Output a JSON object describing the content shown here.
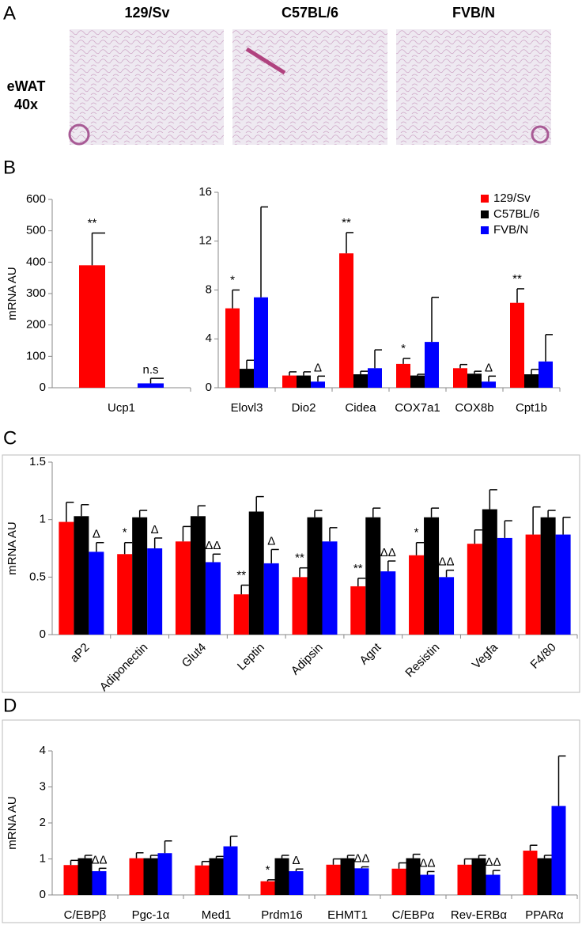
{
  "panel_labels": [
    "A",
    "B",
    "C",
    "D"
  ],
  "histology": {
    "columns": [
      "129/Sv",
      "C57BL/6",
      "FVB/N"
    ],
    "row_label": [
      "eWAT",
      "40x"
    ]
  },
  "chart_data": [
    {
      "type": "bar",
      "ylabel": "mRNA AU",
      "categories": [
        "Ucp1"
      ],
      "ylim": [
        0,
        600
      ],
      "yticks": [
        0,
        100,
        200,
        300,
        400,
        500,
        600
      ],
      "series": [
        {
          "color": "#ff0000",
          "values": [
            390
          ],
          "errors": [
            103
          ],
          "annotations": [
            "**"
          ]
        },
        {
          "color": "#000000",
          "values": [
            0
          ],
          "errors": [
            null
          ],
          "annotations": [
            null
          ]
        },
        {
          "color": "#0000ff",
          "values": [
            14
          ],
          "errors": [
            16
          ],
          "annotations": [
            "n.s"
          ]
        }
      ]
    },
    {
      "type": "bar",
      "categories": [
        "Elovl3",
        "Dio2",
        "Cidea",
        "COX7a1",
        "COX8b",
        "Cpt1b"
      ],
      "ylim": [
        0,
        16
      ],
      "yticks": [
        0,
        4,
        8,
        12,
        16
      ],
      "legend": "top-right",
      "series": [
        {
          "name": "129/Sv",
          "color": "#ff0000",
          "values": [
            6.5,
            1.0,
            11.0,
            1.95,
            1.6,
            6.95
          ],
          "errors": [
            1.5,
            0.3,
            1.7,
            0.45,
            0.3,
            1.15
          ],
          "annotations": [
            "*",
            null,
            "**",
            "*",
            null,
            "**"
          ]
        },
        {
          "name": "C57BL/6",
          "color": "#000000",
          "values": [
            1.55,
            1.0,
            1.1,
            1.0,
            1.15,
            1.1
          ],
          "errors": [
            0.7,
            0.3,
            0.25,
            0.1,
            0.2,
            0.4
          ],
          "annotations": [
            null,
            null,
            null,
            null,
            null,
            null
          ]
        },
        {
          "name": "FVB/N",
          "color": "#0000ff",
          "values": [
            7.4,
            0.5,
            1.6,
            3.75,
            0.5,
            2.15
          ],
          "errors": [
            7.4,
            0.45,
            1.5,
            3.65,
            0.45,
            2.2
          ],
          "annotations": [
            null,
            "Δ",
            null,
            null,
            "Δ",
            null
          ]
        }
      ]
    },
    {
      "type": "bar",
      "ylabel": "mRNA AU",
      "categories": [
        "aP2",
        "Adiponectin",
        "Glut4",
        "Leptin",
        "Adipsin",
        "Agnt",
        "Resistin",
        "Vegfa",
        "F4/80"
      ],
      "ylim": [
        0,
        1.5
      ],
      "yticks": [
        0,
        0.5,
        1,
        1.5
      ],
      "series": [
        {
          "color": "#ff0000",
          "values": [
            0.98,
            0.7,
            0.81,
            0.35,
            0.5,
            0.42,
            0.69,
            0.79,
            0.87
          ],
          "errors": [
            0.17,
            0.1,
            0.13,
            0.08,
            0.08,
            0.07,
            0.11,
            0.12,
            0.24
          ],
          "annotations": [
            null,
            "*",
            null,
            "**",
            "**",
            "**",
            "*",
            null,
            null
          ]
        },
        {
          "color": "#000000",
          "values": [
            1.03,
            1.02,
            1.03,
            1.07,
            1.02,
            1.02,
            1.02,
            1.09,
            1.02
          ],
          "errors": [
            0.1,
            0.06,
            0.09,
            0.13,
            0.06,
            0.08,
            0.08,
            0.17,
            0.06
          ],
          "annotations": [
            null,
            null,
            null,
            null,
            null,
            null,
            null,
            null,
            null
          ]
        },
        {
          "color": "#0000ff",
          "values": [
            0.72,
            0.75,
            0.63,
            0.62,
            0.81,
            0.55,
            0.5,
            0.84,
            0.87
          ],
          "errors": [
            0.08,
            0.09,
            0.07,
            0.12,
            0.12,
            0.09,
            0.06,
            0.15,
            0.15
          ],
          "annotations": [
            "Δ",
            "Δ",
            "ΔΔ",
            "Δ",
            null,
            "ΔΔ",
            "ΔΔ",
            null,
            null
          ]
        }
      ]
    },
    {
      "type": "bar",
      "ylabel": "mRNA AU",
      "categories": [
        "C/EBPβ",
        "Pgc-1α",
        "Med1",
        "Prdm16",
        "EHMT1",
        "C/EBPα",
        "Rev-ERBα",
        "PPARα"
      ],
      "ylim": [
        0,
        4
      ],
      "yticks": [
        0,
        1,
        2,
        3,
        4
      ],
      "series": [
        {
          "color": "#ff0000",
          "values": [
            0.83,
            1.02,
            0.82,
            0.38,
            0.84,
            0.73,
            0.84,
            1.23
          ],
          "errors": [
            0.13,
            0.15,
            0.11,
            0.04,
            0.16,
            0.16,
            0.16,
            0.15
          ],
          "annotations": [
            null,
            null,
            null,
            "*",
            null,
            null,
            null,
            null
          ]
        },
        {
          "color": "#000000",
          "values": [
            1.02,
            1.02,
            1.02,
            1.02,
            1.02,
            1.02,
            1.02,
            1.02
          ],
          "errors": [
            0.08,
            0.08,
            0.05,
            0.08,
            0.08,
            0.11,
            0.08,
            0.08
          ],
          "annotations": [
            null,
            null,
            null,
            null,
            null,
            null,
            null,
            null
          ]
        },
        {
          "color": "#0000ff",
          "values": [
            0.66,
            1.16,
            1.35,
            0.66,
            0.74,
            0.56,
            0.56,
            2.47
          ],
          "errors": [
            0.08,
            0.34,
            0.28,
            0.06,
            0.04,
            0.09,
            0.12,
            1.39
          ],
          "annotations": [
            "ΔΔ",
            null,
            null,
            "Δ",
            "ΔΔ",
            "ΔΔ",
            "ΔΔ",
            null
          ]
        }
      ]
    }
  ]
}
